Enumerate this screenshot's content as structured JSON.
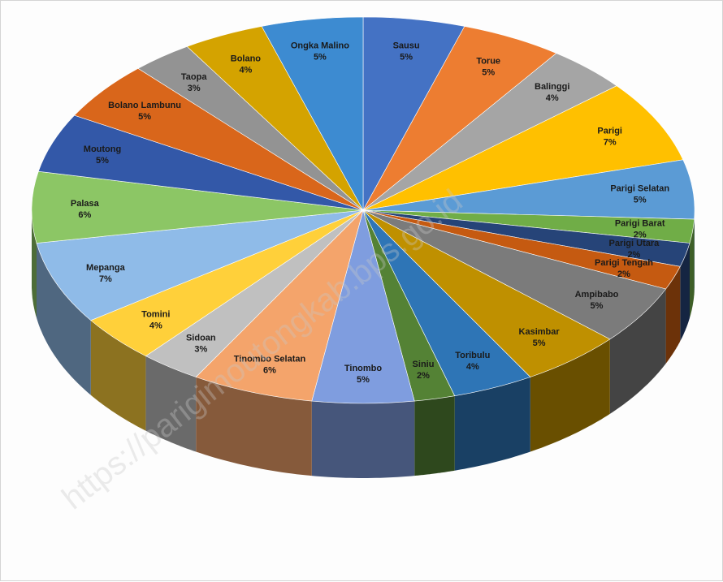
{
  "chart_data": {
    "type": "pie",
    "title": "",
    "unit": "%",
    "three_d": true,
    "slices": [
      {
        "label": "Sausu",
        "value": 5,
        "value_label": "5%",
        "color": "#4472c4"
      },
      {
        "label": "Torue",
        "value": 5,
        "value_label": "5%",
        "color": "#ed7d31"
      },
      {
        "label": "Balinggi",
        "value": 4,
        "value_label": "4%",
        "color": "#a5a5a5"
      },
      {
        "label": "Parigi",
        "value": 7,
        "value_label": "7%",
        "color": "#ffc000"
      },
      {
        "label": "Parigi Selatan",
        "value": 5,
        "value_label": "5%",
        "color": "#5b9bd5"
      },
      {
        "label": "Parigi Barat",
        "value": 2,
        "value_label": "2%",
        "color": "#70ad47"
      },
      {
        "label": "Parigi Utara",
        "value": 2,
        "value_label": "2%",
        "color": "#264478"
      },
      {
        "label": "Parigi Tengah",
        "value": 2,
        "value_label": "2%",
        "color": "#c55a11"
      },
      {
        "label": "Ampibabo",
        "value": 5,
        "value_label": "5%",
        "color": "#7b7b7b"
      },
      {
        "label": "Kasimbar",
        "value": 5,
        "value_label": "5%",
        "color": "#bf9000"
      },
      {
        "label": "Toribulu",
        "value": 4,
        "value_label": "4%",
        "color": "#2e75b6"
      },
      {
        "label": "Siniu",
        "value": 2,
        "value_label": "2%",
        "color": "#548235"
      },
      {
        "label": "Tinombo",
        "value": 5,
        "value_label": "5%",
        "color": "#7f9ddf"
      },
      {
        "label": "Tinombo Selatan",
        "value": 6,
        "value_label": "6%",
        "color": "#f4a46b"
      },
      {
        "label": "Sidoan",
        "value": 3,
        "value_label": "3%",
        "color": "#c0c0c0"
      },
      {
        "label": "Tomini",
        "value": 4,
        "value_label": "4%",
        "color": "#ffd03a"
      },
      {
        "label": "Mepanga",
        "value": 7,
        "value_label": "7%",
        "color": "#8fbbe8"
      },
      {
        "label": "Palasa",
        "value": 6,
        "value_label": "6%",
        "color": "#8cc665"
      },
      {
        "label": "Moutong",
        "value": 5,
        "value_label": "5%",
        "color": "#3358a8"
      },
      {
        "label": "Bolano Lambunu",
        "value": 5,
        "value_label": "5%",
        "color": "#d9661b"
      },
      {
        "label": "Taopa",
        "value": 3,
        "value_label": "3%",
        "color": "#939393"
      },
      {
        "label": "Bolano",
        "value": 4,
        "value_label": "4%",
        "color": "#d4a300"
      },
      {
        "label": "Ongka Malino",
        "value": 5,
        "value_label": "5%",
        "color": "#3d8bd1"
      }
    ]
  },
  "watermark": "https://parigimoutongkab.bps.go.id"
}
